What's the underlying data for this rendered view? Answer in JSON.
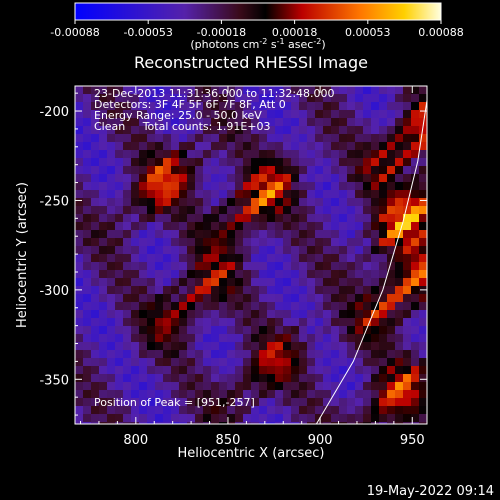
{
  "chart_data": {
    "type": "heatmap",
    "title": "Reconstructed RHESSI Image",
    "xlabel": "Heliocentric X (arcsec)",
    "ylabel": "Heliocentric Y (arcsec)",
    "xlim": [
      767,
      958
    ],
    "ylim": [
      -375,
      -186
    ],
    "xticks": [
      800,
      850,
      900,
      950
    ],
    "yticks": [
      -200,
      -250,
      -300,
      -350
    ],
    "colorbar": {
      "min": -0.00088,
      "max": 0.00088,
      "ticks": [
        "-0.00088",
        "-0.00053",
        "-0.00018",
        "0.00018",
        "0.00053",
        "0.00088"
      ],
      "unit_prefix": "(photons cm",
      "unit_sup1": "-2",
      "unit_mid1": " s",
      "unit_sup2": "-1",
      "unit_mid2": " asec",
      "unit_sup3": "-2",
      "unit_suffix": ")"
    },
    "annotations": [
      "23-Dec-2013 11:31:36.000 to 11:32:48.000",
      "Detectors: 3F 4F 5F 6F 7F 8F, Att 0",
      "Energy Range: 25.0 - 50.0 keV",
      "Clean     Total counts: 1.91E+03"
    ],
    "peak_label": "Position of Peak = [951,-257]",
    "peak": [
      951,
      -257
    ],
    "limb_curve": [
      [
        898,
        -375
      ],
      [
        918,
        -340
      ],
      [
        934,
        -300
      ],
      [
        945,
        -262
      ],
      [
        953,
        -228
      ],
      [
        958,
        -194
      ]
    ],
    "pattern": {
      "orientation": "diagonal",
      "bright_regions": [
        {
          "x": 815,
          "y": -240,
          "level": 0.75
        },
        {
          "x": 865,
          "y": -250,
          "level": 0.85
        },
        {
          "x": 950,
          "y": -215,
          "level": 0.9
        },
        {
          "x": 950,
          "y": -257,
          "level": 1.0
        },
        {
          "x": 945,
          "y": -300,
          "level": 0.9
        },
        {
          "x": 830,
          "y": -305,
          "level": 0.7
        },
        {
          "x": 870,
          "y": -345,
          "level": 0.6
        },
        {
          "x": 940,
          "y": -360,
          "level": 0.75
        }
      ]
    }
  },
  "footer": {
    "timestamp": "19-May-2022 09:14"
  }
}
